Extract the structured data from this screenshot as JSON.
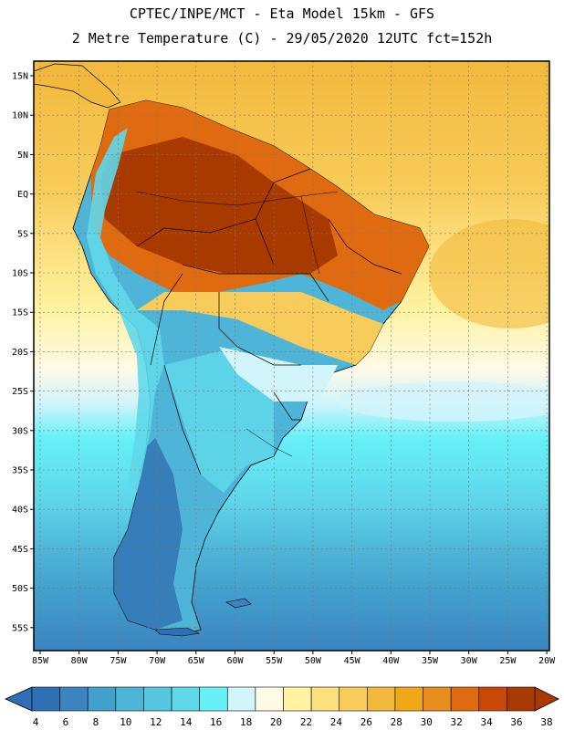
{
  "header": {
    "line1": "CPTEC/INPE/MCT -  Eta Model 15km - GFS",
    "line2": "2 Metre Temperature (C) - 29/05/2020 12UTC fct=152h"
  },
  "map": {
    "lat_labels": [
      "15N",
      "10N",
      "5N",
      "EQ",
      "5S",
      "10S",
      "15S",
      "20S",
      "25S",
      "30S",
      "35S",
      "40S",
      "45S",
      "50S",
      "55S"
    ],
    "lon_labels": [
      "85W",
      "80W",
      "75W",
      "70W",
      "65W",
      "60W",
      "55W",
      "50W",
      "45W",
      "40W",
      "35W",
      "30W",
      "25W",
      "20W"
    ]
  },
  "colorbar": {
    "labels": [
      "4",
      "6",
      "8",
      "10",
      "12",
      "14",
      "16",
      "18",
      "20",
      "22",
      "24",
      "26",
      "28",
      "30",
      "32",
      "34",
      "36",
      "38"
    ],
    "colors": [
      "#2f6fb3",
      "#3a84c0",
      "#42a0cc",
      "#4fb5d8",
      "#57c7e0",
      "#5fd8ea",
      "#66f0f8",
      "#d2f4fb",
      "#fffae6",
      "#fff2a0",
      "#fde07e",
      "#f8cc5a",
      "#f2b93c",
      "#eea818",
      "#e88e1c",
      "#e06a10",
      "#c84808",
      "#a83a00"
    ]
  }
}
